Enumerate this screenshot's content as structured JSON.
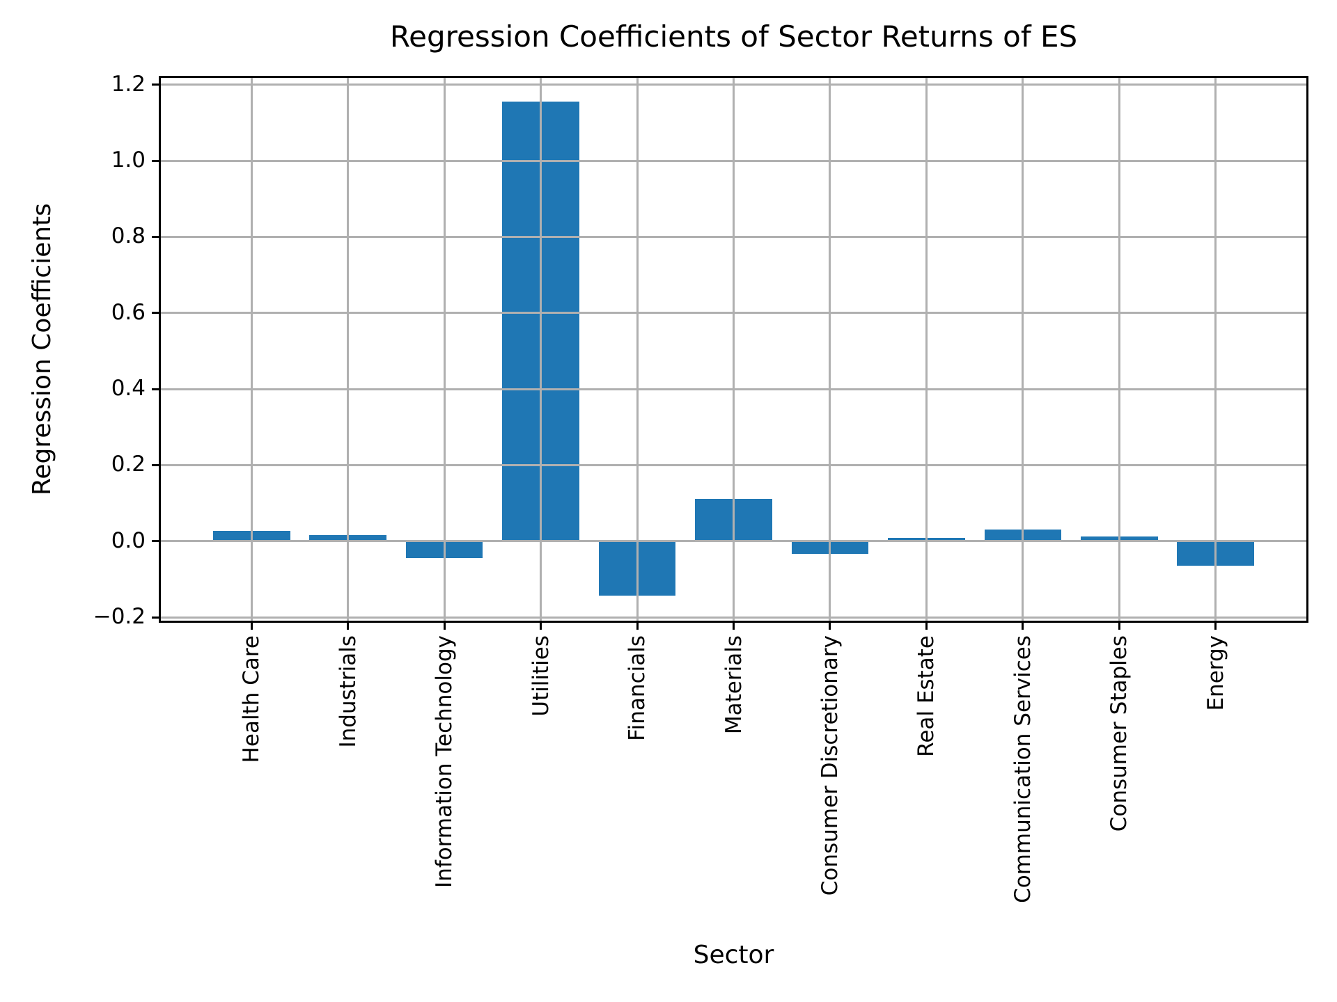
{
  "chart_data": {
    "type": "bar",
    "title": "Regression Coefficients of Sector Returns of ES",
    "xlabel": "Sector",
    "ylabel": "Regression Coefficients",
    "categories": [
      "Health Care",
      "Industrials",
      "Information Technology",
      "Utilities",
      "Financials",
      "Materials",
      "Consumer Discretionary",
      "Real Estate",
      "Communication Services",
      "Consumer Staples",
      "Energy"
    ],
    "values": [
      0.027,
      0.016,
      -0.044,
      1.155,
      -0.144,
      0.111,
      -0.033,
      0.009,
      0.031,
      0.012,
      -0.064
    ],
    "yticks": [
      1.2,
      1.0,
      0.8,
      0.6,
      0.4,
      0.2,
      0.0,
      -0.2
    ],
    "ylim": [
      -0.209,
      1.218
    ],
    "grid": true,
    "legend": "none",
    "bar_color": "#1f77b4",
    "grid_color": "#b0b0b0",
    "axis_color": "#000000"
  }
}
